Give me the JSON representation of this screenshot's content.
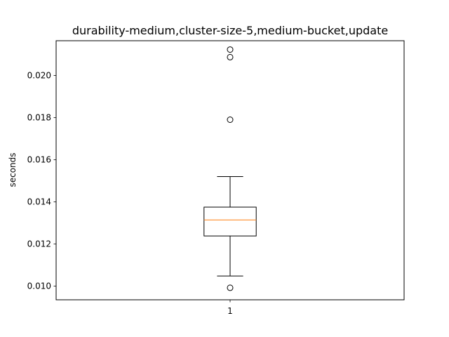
{
  "chart_data": {
    "type": "boxplot",
    "title": "durability-medium,cluster-size-5,medium-bucket,update",
    "xlabel": "",
    "ylabel": "seconds",
    "categories": [
      "1"
    ],
    "ylim": [
      0.00935,
      0.02165
    ],
    "yticks": [
      0.01,
      0.012,
      0.014,
      0.016,
      0.018,
      0.02
    ],
    "ytick_labels": [
      "0.010",
      "0.012",
      "0.014",
      "0.016",
      "0.018",
      "0.020"
    ],
    "grid": false,
    "legend": "none",
    "boxes": [
      {
        "category": "1",
        "whisker_low": 0.01048,
        "q1": 0.01238,
        "median": 0.01314,
        "q3": 0.01375,
        "whisker_high": 0.0152,
        "outliers": [
          0.00992,
          0.0179,
          0.02087,
          0.02123
        ]
      }
    ],
    "colors": {
      "box": "#000000",
      "median": "#ff7f0e",
      "outlier": "#000000"
    }
  }
}
